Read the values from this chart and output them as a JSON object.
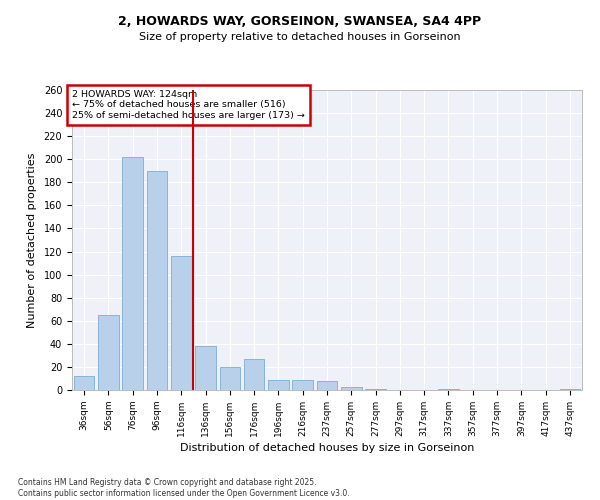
{
  "title1": "2, HOWARDS WAY, GORSEINON, SWANSEA, SA4 4PP",
  "title2": "Size of property relative to detached houses in Gorseinon",
  "xlabel": "Distribution of detached houses by size in Gorseinon",
  "ylabel": "Number of detached properties",
  "categories": [
    "36sqm",
    "56sqm",
    "76sqm",
    "96sqm",
    "116sqm",
    "136sqm",
    "156sqm",
    "176sqm",
    "196sqm",
    "216sqm",
    "237sqm",
    "257sqm",
    "277sqm",
    "297sqm",
    "317sqm",
    "337sqm",
    "357sqm",
    "377sqm",
    "397sqm",
    "417sqm",
    "437sqm"
  ],
  "values": [
    12,
    65,
    202,
    190,
    116,
    38,
    20,
    27,
    9,
    9,
    8,
    3,
    1,
    0,
    0,
    1,
    0,
    0,
    0,
    0,
    1
  ],
  "bar_color": "#b8d0ea",
  "bar_edge_color": "#7aadd4",
  "vline_x": 4.5,
  "vline_color": "#cc0000",
  "annotation_title": "2 HOWARDS WAY: 124sqm",
  "annotation_line1": "← 75% of detached houses are smaller (516)",
  "annotation_line2": "25% of semi-detached houses are larger (173) →",
  "annotation_box_color": "#cc0000",
  "ylim": [
    0,
    260
  ],
  "yticks": [
    0,
    20,
    40,
    60,
    80,
    100,
    120,
    140,
    160,
    180,
    200,
    220,
    240,
    260
  ],
  "bg_color": "#eef2f8",
  "footer1": "Contains HM Land Registry data © Crown copyright and database right 2025.",
  "footer2": "Contains public sector information licensed under the Open Government Licence v3.0."
}
